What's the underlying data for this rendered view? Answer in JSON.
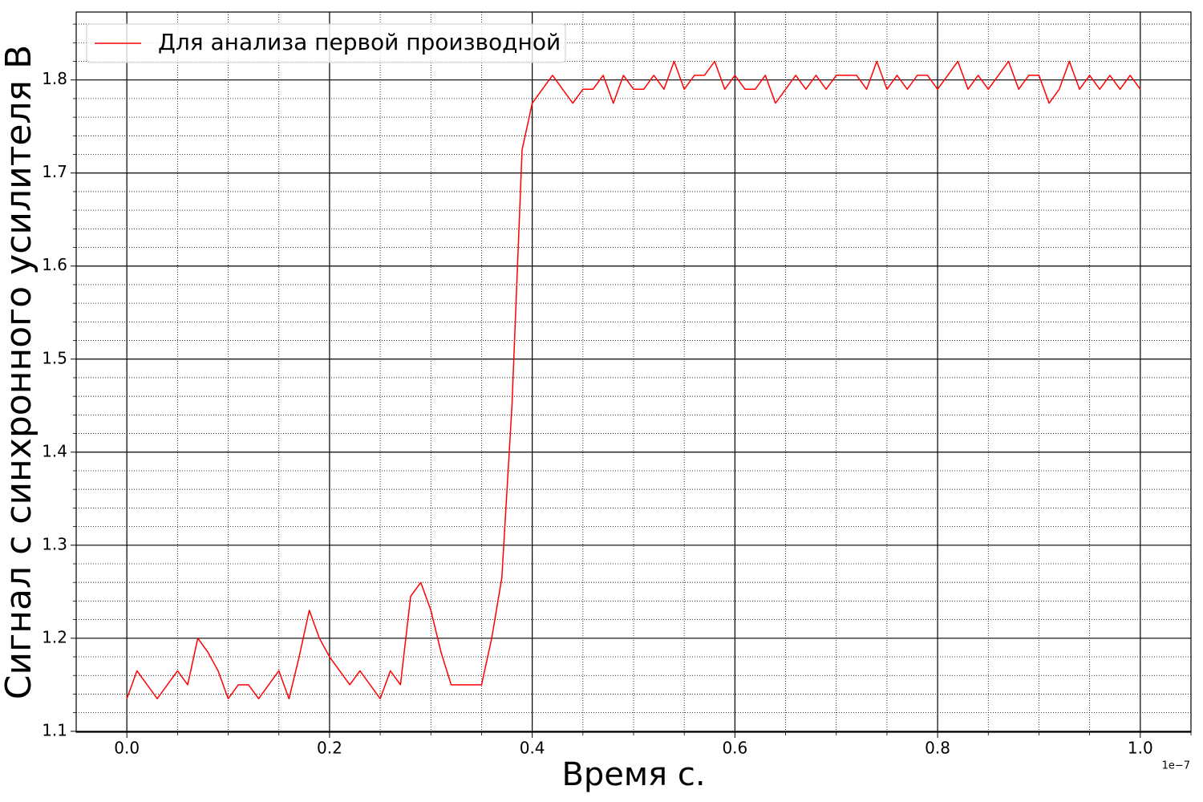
{
  "chart_data": {
    "type": "line",
    "xlabel": "Время с.",
    "ylabel": "Сигнал с синхронного усилителя В",
    "x_offset_label": "1e−7",
    "x": [
      0,
      0.01,
      0.02,
      0.03,
      0.04,
      0.05,
      0.06,
      0.07,
      0.08,
      0.09,
      0.1,
      0.11,
      0.12,
      0.13,
      0.14,
      0.15,
      0.16,
      0.17,
      0.18,
      0.19,
      0.2,
      0.21,
      0.22,
      0.23,
      0.24,
      0.25,
      0.26,
      0.27,
      0.28,
      0.29,
      0.3,
      0.31,
      0.32,
      0.33,
      0.34,
      0.35,
      0.36,
      0.37,
      0.38,
      0.39,
      0.4,
      0.41,
      0.42,
      0.43,
      0.44,
      0.45,
      0.46,
      0.47,
      0.48,
      0.49,
      0.5,
      0.51,
      0.52,
      0.53,
      0.54,
      0.55,
      0.56,
      0.57,
      0.58,
      0.59,
      0.6,
      0.61,
      0.62,
      0.63,
      0.64,
      0.65,
      0.66,
      0.67,
      0.68,
      0.69,
      0.7,
      0.71,
      0.72,
      0.73,
      0.74,
      0.75,
      0.76,
      0.77,
      0.78,
      0.79,
      0.8,
      0.81,
      0.82,
      0.83,
      0.84,
      0.85,
      0.86,
      0.87,
      0.88,
      0.89,
      0.9,
      0.91,
      0.92,
      0.93,
      0.94,
      0.95,
      0.96,
      0.97,
      0.98,
      0.99,
      1
    ],
    "series": [
      {
        "name": "Для анализа первой производной",
        "color": "#ff0000",
        "values": [
          1.135,
          1.165,
          1.15,
          1.135,
          1.15,
          1.165,
          1.15,
          1.2,
          1.185,
          1.165,
          1.135,
          1.15,
          1.15,
          1.135,
          1.15,
          1.165,
          1.135,
          1.18,
          1.23,
          1.2,
          1.18,
          1.165,
          1.15,
          1.165,
          1.15,
          1.135,
          1.165,
          1.15,
          1.245,
          1.26,
          1.23,
          1.185,
          1.15,
          1.15,
          1.15,
          1.15,
          1.2,
          1.265,
          1.45,
          1.725,
          1.775,
          1.79,
          1.805,
          1.79,
          1.775,
          1.79,
          1.79,
          1.805,
          1.775,
          1.805,
          1.79,
          1.79,
          1.805,
          1.79,
          1.82,
          1.79,
          1.805,
          1.805,
          1.82,
          1.79,
          1.805,
          1.79,
          1.79,
          1.805,
          1.775,
          1.79,
          1.805,
          1.79,
          1.805,
          1.79,
          1.805,
          1.805,
          1.805,
          1.79,
          1.82,
          1.79,
          1.805,
          1.79,
          1.805,
          1.805,
          1.79,
          1.805,
          1.82,
          1.79,
          1.805,
          1.79,
          1.805,
          1.82,
          1.79,
          1.805,
          1.805,
          1.775,
          1.79,
          1.82,
          1.79,
          1.805,
          1.79,
          1.805,
          1.79,
          1.805,
          1.79
        ]
      }
    ],
    "xlim": [
      -0.05,
      1.05
    ],
    "ylim": [
      1.099,
      1.873
    ],
    "xticks": [
      {
        "value": 0,
        "label": "0.0"
      },
      0.2,
      0.4,
      0.6,
      0.8,
      {
        "value": 1,
        "label": "1.0"
      }
    ],
    "yticks": [
      1.1,
      1.2,
      1.3,
      1.4,
      1.5,
      1.6,
      1.7,
      1.8
    ],
    "xticks_minor": [
      0.05,
      0.1,
      0.15,
      0.25,
      0.3,
      0.35,
      0.45,
      0.5,
      0.55,
      0.65,
      0.7,
      0.75,
      0.85,
      0.9,
      0.95,
      1.05
    ],
    "yticks_minor": [
      1.12,
      1.14,
      1.16,
      1.18,
      1.22,
      1.24,
      1.26,
      1.28,
      1.32,
      1.34,
      1.36,
      1.38,
      1.42,
      1.44,
      1.46,
      1.48,
      1.52,
      1.54,
      1.56,
      1.58,
      1.62,
      1.64,
      1.66,
      1.68,
      1.72,
      1.74,
      1.76,
      1.78,
      1.82,
      1.84,
      1.86
    ],
    "grid": true,
    "legend": "upper left"
  }
}
